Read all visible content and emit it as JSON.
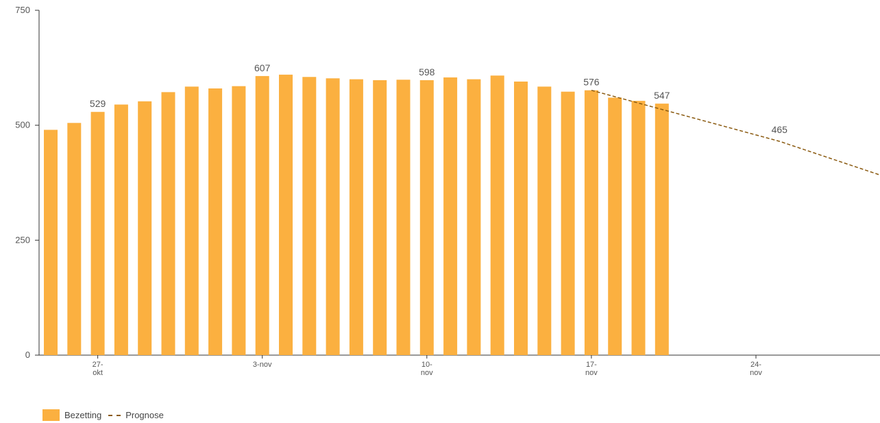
{
  "chart_data": {
    "type": "bar",
    "title": "",
    "xlabel": "",
    "ylabel": "",
    "ylim": [
      0,
      750
    ],
    "yticks": [
      0,
      250,
      500,
      750
    ],
    "colors": {
      "bar": "#FBB040",
      "prognose": "#8A5A10",
      "axis": "#333333"
    },
    "x_ticks": [
      {
        "index": 2,
        "lines": [
          "27-",
          "okt"
        ]
      },
      {
        "index": 9,
        "lines": [
          "3-nov"
        ]
      },
      {
        "index": 16,
        "lines": [
          "10-",
          "nov"
        ]
      },
      {
        "index": 23,
        "lines": [
          "17-",
          "nov"
        ]
      },
      {
        "index": 30,
        "lines": [
          "24-",
          "nov"
        ]
      }
    ],
    "total_days": 36,
    "series": [
      {
        "name": "Bezetting",
        "type": "bar",
        "values": [
          490,
          505,
          529,
          545,
          552,
          572,
          584,
          580,
          585,
          607,
          610,
          605,
          602,
          600,
          598,
          599,
          598,
          604,
          600,
          608,
          595,
          584,
          573,
          576,
          560,
          553,
          547
        ],
        "labels": {
          "2": "529",
          "9": "607",
          "16": "598",
          "23": "576",
          "26": "547"
        }
      },
      {
        "name": "Prognose",
        "type": "line",
        "style": "dashed",
        "points": [
          [
            23,
            576
          ],
          [
            31,
            465
          ],
          [
            35.5,
            388
          ]
        ],
        "labels": {
          "31": "465"
        }
      }
    ],
    "legend": {
      "position": "bottom-left",
      "entries": [
        "Bezetting",
        "Prognose"
      ]
    }
  }
}
